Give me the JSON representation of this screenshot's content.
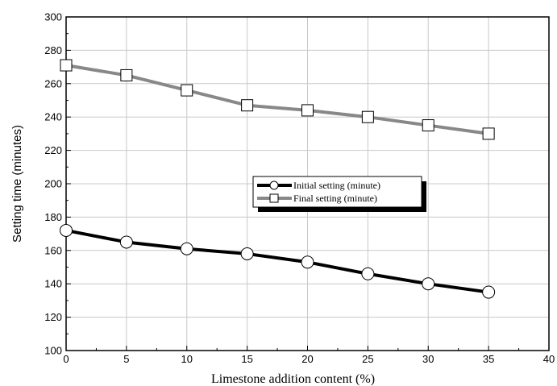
{
  "chart_data": {
    "type": "line",
    "xlabel": "Limestone addition content (%)",
    "ylabel": "Setting time  (minutes)",
    "xlim": [
      0,
      40
    ],
    "ylim": [
      100,
      300
    ],
    "xticks": [
      0,
      5,
      10,
      15,
      20,
      25,
      30,
      35,
      40
    ],
    "yticks": [
      100,
      120,
      140,
      160,
      180,
      200,
      220,
      240,
      260,
      280,
      300
    ],
    "grid": true,
    "legend_position": "center",
    "x": [
      0,
      5,
      10,
      15,
      20,
      25,
      30,
      35
    ],
    "series": [
      {
        "name": "Initial setting  (minute)",
        "values": [
          172,
          165,
          161,
          158,
          153,
          146,
          140,
          135
        ],
        "color": "#000000",
        "marker": "circle"
      },
      {
        "name": "Final setting  (minute)",
        "values": [
          271,
          265,
          256,
          247,
          244,
          240,
          235,
          230
        ],
        "color": "#888888",
        "marker": "square"
      }
    ]
  }
}
